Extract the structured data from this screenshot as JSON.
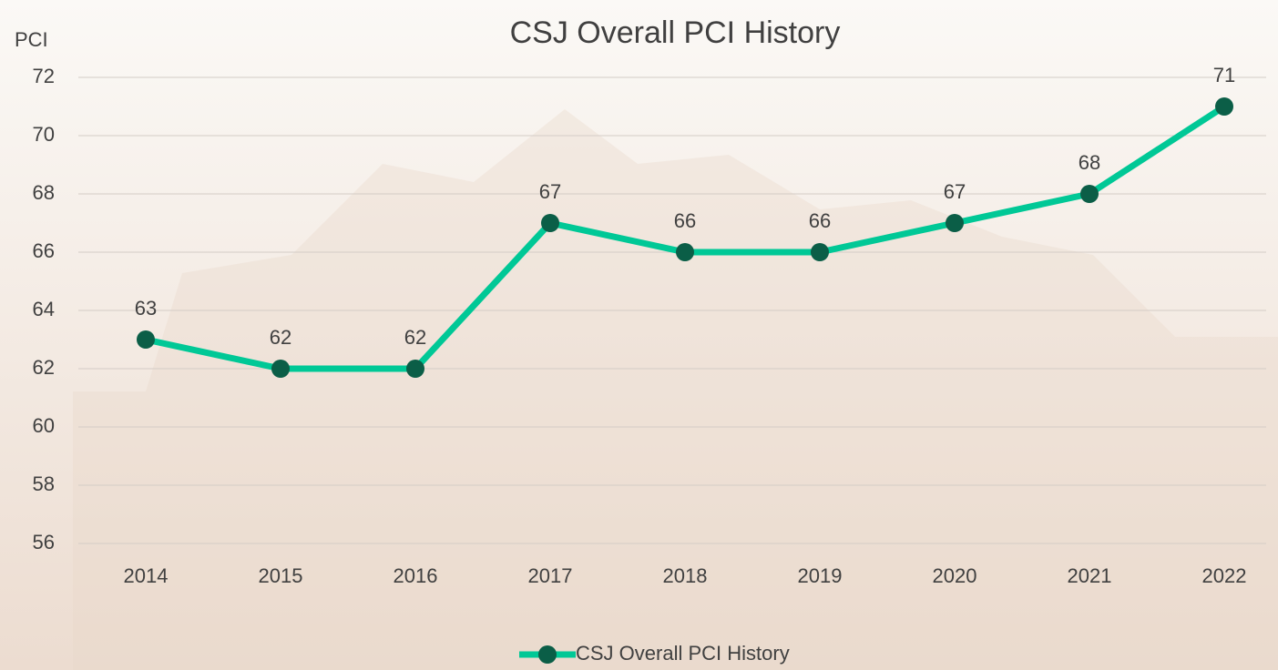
{
  "chart_data": {
    "type": "line",
    "title": "CSJ Overall PCI History",
    "y_label": "PCI",
    "categories": [
      "2014",
      "2015",
      "2016",
      "2017",
      "2018",
      "2019",
      "2020",
      "2021",
      "2022"
    ],
    "series": [
      {
        "name": "CSJ Overall PCI History",
        "color": "#00c896",
        "marker_color": "#0b5e47",
        "values": [
          63,
          62,
          62,
          67,
          66,
          66,
          67,
          68,
          71
        ]
      }
    ],
    "ylim": [
      56,
      72
    ],
    "yticks": [
      56,
      58,
      60,
      62,
      64,
      66,
      68,
      70,
      72
    ],
    "grid": true,
    "legend": "bottom"
  }
}
